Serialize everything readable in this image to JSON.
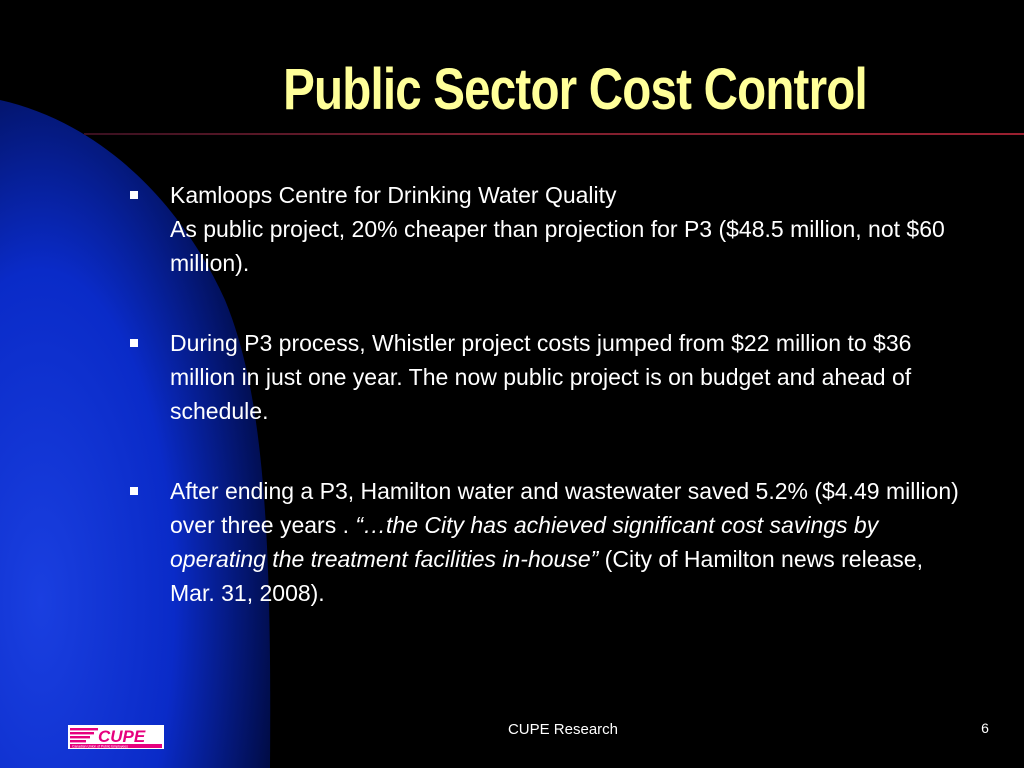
{
  "title": "Public Sector Cost Control",
  "colors": {
    "background": "#000000",
    "title": "#FFFF99",
    "accent_blue": "#0033CC",
    "rule": "#9A2030",
    "text": "#FFFFFF",
    "logo_magenta": "#E6007E"
  },
  "bullets": [
    {
      "line1": "Kamloops Centre for Drinking Water Quality",
      "line2": "As public project, 20% cheaper than projection for P3 ($48.5 million, not $60 million)."
    },
    {
      "text": "During  P3 process, Whistler project costs jumped from $22 million to $36 million in just one year. The now public project is on budget and ahead of schedule."
    },
    {
      "text_before": "After ending a P3, Hamilton water and wastewater saved 5.2% ($4.49 million) over three years . ",
      "quote": "“…the City has achieved significant cost savings by operating the treatment facilities in-house”",
      "text_after": " (City of Hamilton news release, Mar. 31, 2008)."
    }
  ],
  "footer": {
    "text": "CUPE Research",
    "page_number": "6"
  },
  "logo": {
    "text": "CUPE",
    "subtext": "Canadian Union of Public Employees",
    "icon": "cupe-logo-icon"
  }
}
